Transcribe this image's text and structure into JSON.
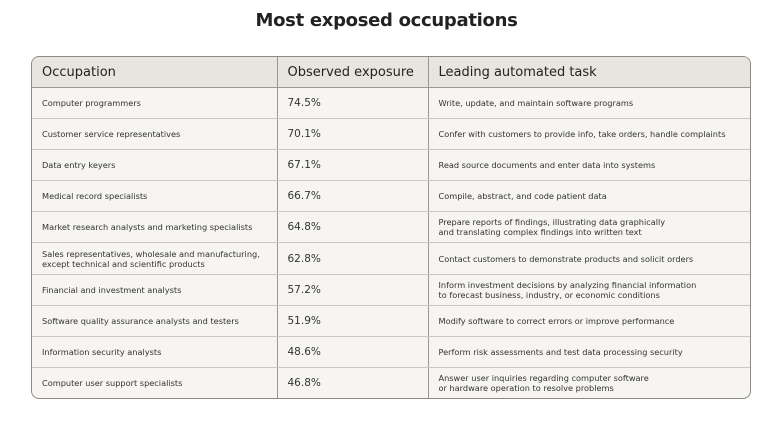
{
  "title": "Most exposed occupations",
  "table": {
    "columns": [
      "Occupation",
      "Observed exposure",
      "Leading automated task"
    ],
    "rows": [
      [
        "Computer programmers",
        "74.5%",
        "Write, update, and maintain software programs"
      ],
      [
        "Customer service representatives",
        "70.1%",
        "Confer with customers to provide info, take orders, handle complaints"
      ],
      [
        "Data entry keyers",
        "67.1%",
        "Read source documents and enter data into systems"
      ],
      [
        "Medical record specialists",
        "66.7%",
        "Compile, abstract, and code patient data"
      ],
      [
        "Market research analysts and marketing specialists",
        "64.8%",
        "Prepare reports of findings, illustrating data graphically\nand translating complex findings into written text"
      ],
      [
        "Sales representatives, wholesale and manufacturing,\nexcept technical and scientific products",
        "62.8%",
        "Contact customers to demonstrate products and solicit orders"
      ],
      [
        "Financial and investment analysts",
        "57.2%",
        "Inform investment decisions by analyzing financial information\nto forecast business, industry, or economic conditions"
      ],
      [
        "Software quality assurance analysts and testers",
        "51.9%",
        "Modify software to correct errors or improve performance"
      ],
      [
        "Information security analysts",
        "48.6%",
        "Perform risk assessments and test data processing security"
      ],
      [
        "Computer user support specialists",
        "46.8%",
        "Answer user inquiries regarding computer software\nor hardware operation to resolve problems"
      ]
    ]
  }
}
